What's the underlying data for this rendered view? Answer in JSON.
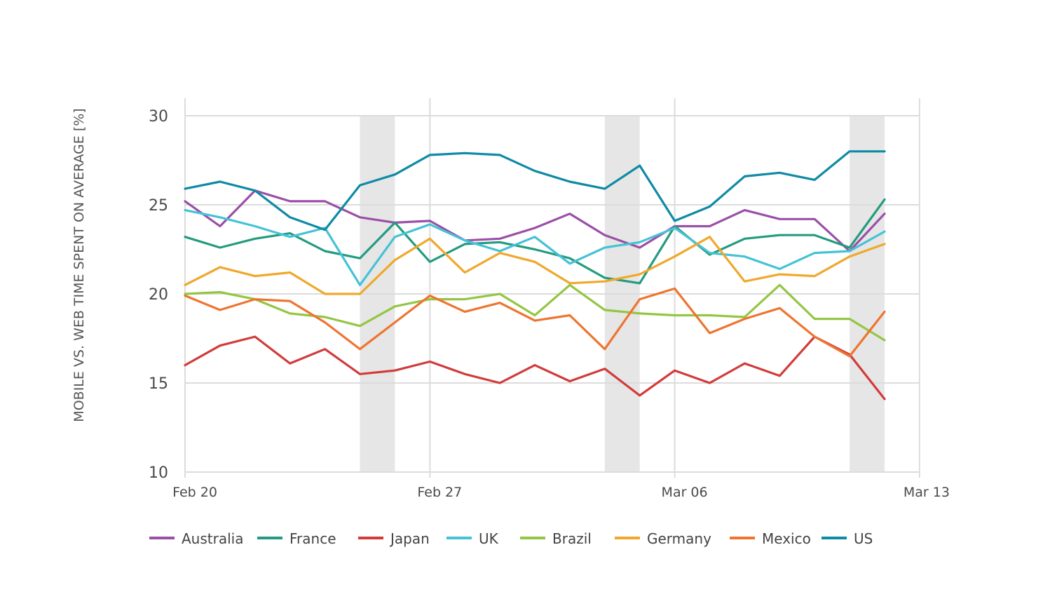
{
  "chart_data": {
    "type": "line",
    "title": "",
    "ylabel": "MOBILE VS. WEB TIME SPENT ON AVERAGE [%]",
    "xlabel": "",
    "ylim": [
      10,
      30
    ],
    "yticks": [
      "10",
      "15",
      "20",
      "25",
      "30"
    ],
    "xticks": [
      "Feb 20",
      "Feb 27",
      "Mar 06",
      "Mar 13"
    ],
    "x": [
      "Feb 20",
      "Feb 21",
      "Feb 22",
      "Feb 23",
      "Feb 24",
      "Feb 25",
      "Feb 26",
      "Feb 27",
      "Feb 28",
      "Mar 01",
      "Mar 02",
      "Mar 03",
      "Mar 04",
      "Mar 05",
      "Mar 06",
      "Mar 07",
      "Mar 08",
      "Mar 09",
      "Mar 10",
      "Mar 11",
      "Mar 12"
    ],
    "weekend_shading": [
      [
        "Feb 25",
        "Feb 26"
      ],
      [
        "Mar 04",
        "Mar 05"
      ],
      [
        "Mar 11",
        "Mar 12"
      ]
    ],
    "grid": true,
    "legend_position": "bottom",
    "series": [
      {
        "name": "Australia",
        "color": "#9b4fa8",
        "values": [
          25.2,
          23.8,
          25.8,
          25.2,
          25.2,
          24.3,
          24.0,
          24.1,
          23.0,
          23.1,
          23.7,
          24.5,
          23.3,
          22.6,
          23.8,
          23.8,
          24.7,
          24.2,
          24.2,
          22.4,
          24.5
        ]
      },
      {
        "name": "France",
        "color": "#249b80",
        "values": [
          23.2,
          22.6,
          23.1,
          23.4,
          22.4,
          22.0,
          24.0,
          21.8,
          22.8,
          22.9,
          22.5,
          22.0,
          20.9,
          20.6,
          23.8,
          22.2,
          23.1,
          23.3,
          23.3,
          22.6,
          25.3
        ]
      },
      {
        "name": "Japan",
        "color": "#d23b3b",
        "values": [
          16.0,
          17.1,
          17.6,
          16.1,
          16.9,
          15.5,
          15.7,
          16.2,
          15.5,
          15.0,
          16.0,
          15.1,
          15.8,
          14.3,
          15.7,
          15.0,
          16.1,
          15.4,
          17.6,
          16.6,
          14.1
        ]
      },
      {
        "name": "UK",
        "color": "#45c2d6",
        "values": [
          24.7,
          24.3,
          23.8,
          23.2,
          23.7,
          20.5,
          23.2,
          23.9,
          23.0,
          22.4,
          23.2,
          21.7,
          22.6,
          22.9,
          23.7,
          22.3,
          22.1,
          21.4,
          22.3,
          22.4,
          23.5
        ]
      },
      {
        "name": "Brazil",
        "color": "#94c643",
        "values": [
          20.0,
          20.1,
          19.7,
          18.9,
          18.7,
          18.2,
          19.3,
          19.7,
          19.7,
          20.0,
          18.8,
          20.5,
          19.1,
          18.9,
          18.8,
          18.8,
          18.7,
          20.5,
          18.6,
          18.6,
          17.4
        ]
      },
      {
        "name": "Germany",
        "color": "#f0a82c",
        "values": [
          20.5,
          21.5,
          21.0,
          21.2,
          20.0,
          20.0,
          21.9,
          23.1,
          21.2,
          22.3,
          21.8,
          20.6,
          20.7,
          21.1,
          22.1,
          23.2,
          20.7,
          21.1,
          21.0,
          22.1,
          22.8
        ]
      },
      {
        "name": "Mexico",
        "color": "#ee7530",
        "values": [
          19.9,
          19.1,
          19.7,
          19.6,
          18.4,
          16.9,
          18.4,
          19.9,
          19.0,
          19.5,
          18.5,
          18.8,
          16.9,
          19.7,
          20.3,
          17.8,
          18.6,
          19.2,
          17.6,
          16.5,
          19.0
        ]
      },
      {
        "name": "US",
        "color": "#0f8aa5",
        "values": [
          25.9,
          26.3,
          25.8,
          24.3,
          23.6,
          26.1,
          26.7,
          27.8,
          27.9,
          27.8,
          26.9,
          26.3,
          25.9,
          27.2,
          24.1,
          24.9,
          26.6,
          26.8,
          26.4,
          28.0,
          28.0
        ]
      }
    ]
  }
}
